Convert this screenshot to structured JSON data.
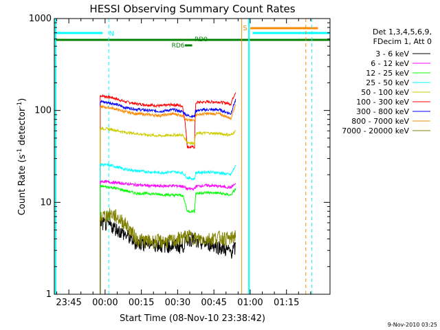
{
  "chart_data": {
    "type": "line",
    "title": "HESSI Observing Summary Count Rates",
    "xlabel": "Start Time (08-Nov-10 23:38:42)",
    "ylabel_main": "Count Rate (s",
    "ylabel_sup1": "-1",
    "ylabel_mid": " detector",
    "ylabel_sup2": "-1",
    "ylabel_end": ")",
    "yscale": "log",
    "ylim": [
      1,
      1000
    ],
    "xlim_minutes": [
      -21,
      93
    ],
    "x_tick_labels": [
      "23:45",
      "00:00",
      "00:15",
      "00:30",
      "00:45",
      "01:00",
      "01:15"
    ],
    "x_tick_minutes": [
      -15,
      0,
      15,
      30,
      45,
      60,
      75
    ],
    "y_tick_labels": [
      "1",
      "10",
      "100",
      "1000"
    ],
    "y_tick_values": [
      1,
      10,
      100,
      1000
    ],
    "legend": {
      "header": [
        "Det 1,3,4,5,6,9,",
        "FDecim 1, Att 0"
      ],
      "entries": [
        {
          "label": "3 - 6 keV",
          "color": "#000000"
        },
        {
          "label": "6 - 12 keV",
          "color": "#ff00ff"
        },
        {
          "label": "12 - 25 keV",
          "color": "#00ff00"
        },
        {
          "label": "25 - 50 keV",
          "color": "#00ffff"
        },
        {
          "label": "50 - 100 keV",
          "color": "#cccc00"
        },
        {
          "label": "100 - 300 keV",
          "color": "#ff0000"
        },
        {
          "label": "300 - 800 keV",
          "color": "#0000ff"
        },
        {
          "label": "800 - 7000 keV",
          "color": "#ff8800"
        },
        {
          "label": "7000 - 20000 keV",
          "color": "#808000"
        }
      ]
    },
    "series": [
      {
        "name": "100 - 300 keV",
        "color": "#ff0000",
        "points": [
          [
            -2,
            145
          ],
          [
            3,
            138
          ],
          [
            8,
            125
          ],
          [
            13,
            118
          ],
          [
            18,
            115
          ],
          [
            23,
            112
          ],
          [
            28,
            116
          ],
          [
            32,
            112
          ],
          [
            34,
            40
          ],
          [
            37,
            40
          ],
          [
            37.5,
            122
          ],
          [
            42,
            124
          ],
          [
            47,
            124
          ],
          [
            52,
            118
          ],
          [
            54,
            160
          ]
        ]
      },
      {
        "name": "300 - 800 keV",
        "color": "#0000ff",
        "points": [
          [
            -2,
            125
          ],
          [
            3,
            120
          ],
          [
            8,
            108
          ],
          [
            13,
            103
          ],
          [
            18,
            100
          ],
          [
            23,
            98
          ],
          [
            28,
            102
          ],
          [
            32,
            97
          ],
          [
            34,
            88
          ],
          [
            37,
            86
          ],
          [
            37.5,
            100
          ],
          [
            42,
            102
          ],
          [
            47,
            102
          ],
          [
            52,
            92
          ],
          [
            54,
            130
          ]
        ]
      },
      {
        "name": "800 - 7000 keV",
        "color": "#ff8800",
        "points": [
          [
            -2,
            110
          ],
          [
            3,
            106
          ],
          [
            8,
            97
          ],
          [
            13,
            92
          ],
          [
            18,
            90
          ],
          [
            23,
            88
          ],
          [
            28,
            92
          ],
          [
            32,
            88
          ],
          [
            34,
            78
          ],
          [
            37,
            78
          ],
          [
            37.5,
            90
          ],
          [
            42,
            92
          ],
          [
            47,
            92
          ],
          [
            52,
            82
          ],
          [
            54,
            115
          ]
        ]
      },
      {
        "name": "50 - 100 keV",
        "color": "#cccc00",
        "points": [
          [
            -2,
            64
          ],
          [
            3,
            62
          ],
          [
            8,
            58
          ],
          [
            13,
            56
          ],
          [
            18,
            54
          ],
          [
            23,
            53
          ],
          [
            28,
            54
          ],
          [
            32,
            54
          ],
          [
            34,
            45
          ],
          [
            37,
            44
          ],
          [
            37.5,
            56
          ],
          [
            42,
            57
          ],
          [
            47,
            56
          ],
          [
            52,
            54
          ],
          [
            54,
            60
          ]
        ]
      },
      {
        "name": "25 - 50 keV",
        "color": "#00ffff",
        "points": [
          [
            -2,
            26
          ],
          [
            3,
            25
          ],
          [
            8,
            23
          ],
          [
            13,
            22
          ],
          [
            18,
            21.5
          ],
          [
            23,
            21
          ],
          [
            28,
            21.5
          ],
          [
            32,
            21
          ],
          [
            34,
            18.5
          ],
          [
            37,
            18
          ],
          [
            37.5,
            21
          ],
          [
            42,
            21.5
          ],
          [
            47,
            21
          ],
          [
            52,
            20
          ],
          [
            54,
            25
          ]
        ]
      },
      {
        "name": "6 - 12 keV",
        "color": "#ff00ff",
        "points": [
          [
            -2,
            17
          ],
          [
            3,
            16.5
          ],
          [
            8,
            16
          ],
          [
            13,
            15.5
          ],
          [
            18,
            15.2
          ],
          [
            23,
            15
          ],
          [
            28,
            15.2
          ],
          [
            32,
            15
          ],
          [
            34,
            14
          ],
          [
            37,
            14
          ],
          [
            37.5,
            15
          ],
          [
            42,
            15.3
          ],
          [
            47,
            15
          ],
          [
            52,
            14.5
          ],
          [
            54,
            16
          ]
        ]
      },
      {
        "name": "12 - 25 keV",
        "color": "#00ff00",
        "points": [
          [
            -2,
            15
          ],
          [
            3,
            14.5
          ],
          [
            8,
            13.5
          ],
          [
            13,
            12.5
          ],
          [
            18,
            12.5
          ],
          [
            23,
            12.2
          ],
          [
            28,
            12
          ],
          [
            32,
            12
          ],
          [
            34,
            8
          ],
          [
            37,
            8
          ],
          [
            37.5,
            12.5
          ],
          [
            42,
            12.8
          ],
          [
            47,
            12.6
          ],
          [
            52,
            12
          ],
          [
            54,
            14
          ]
        ]
      },
      {
        "name": "3 - 6 keV",
        "color": "#000000",
        "points": [
          [
            -2,
            6
          ],
          [
            3,
            5.5
          ],
          [
            8,
            4.5
          ],
          [
            13,
            3.6
          ],
          [
            18,
            3.6
          ],
          [
            23,
            3.4
          ],
          [
            28,
            3.4
          ],
          [
            32,
            3.3
          ],
          [
            34,
            4
          ],
          [
            37,
            4
          ],
          [
            37.5,
            3.6
          ],
          [
            42,
            3.6
          ],
          [
            47,
            3.3
          ],
          [
            52,
            2.9
          ],
          [
            54,
            3.2
          ]
        ]
      },
      {
        "name": "7000 - 20000 keV",
        "color": "#808000",
        "points": [
          [
            -2,
            7
          ],
          [
            3,
            7.5
          ],
          [
            8,
            6
          ],
          [
            13,
            4
          ],
          [
            18,
            3.8
          ],
          [
            23,
            3.8
          ],
          [
            28,
            3.8
          ],
          [
            32,
            4.2
          ],
          [
            34,
            4.3
          ],
          [
            37,
            4.2
          ],
          [
            37.5,
            4.0
          ],
          [
            42,
            4.0
          ],
          [
            47,
            4.2
          ],
          [
            52,
            4.0
          ],
          [
            54,
            4.5
          ]
        ]
      }
    ],
    "annotations": {
      "N_label": "N",
      "S_label": "S",
      "RD0_label": "RD0",
      "RD6_label": "RD6"
    },
    "timestamp": "9-Nov-2010 03:25"
  }
}
